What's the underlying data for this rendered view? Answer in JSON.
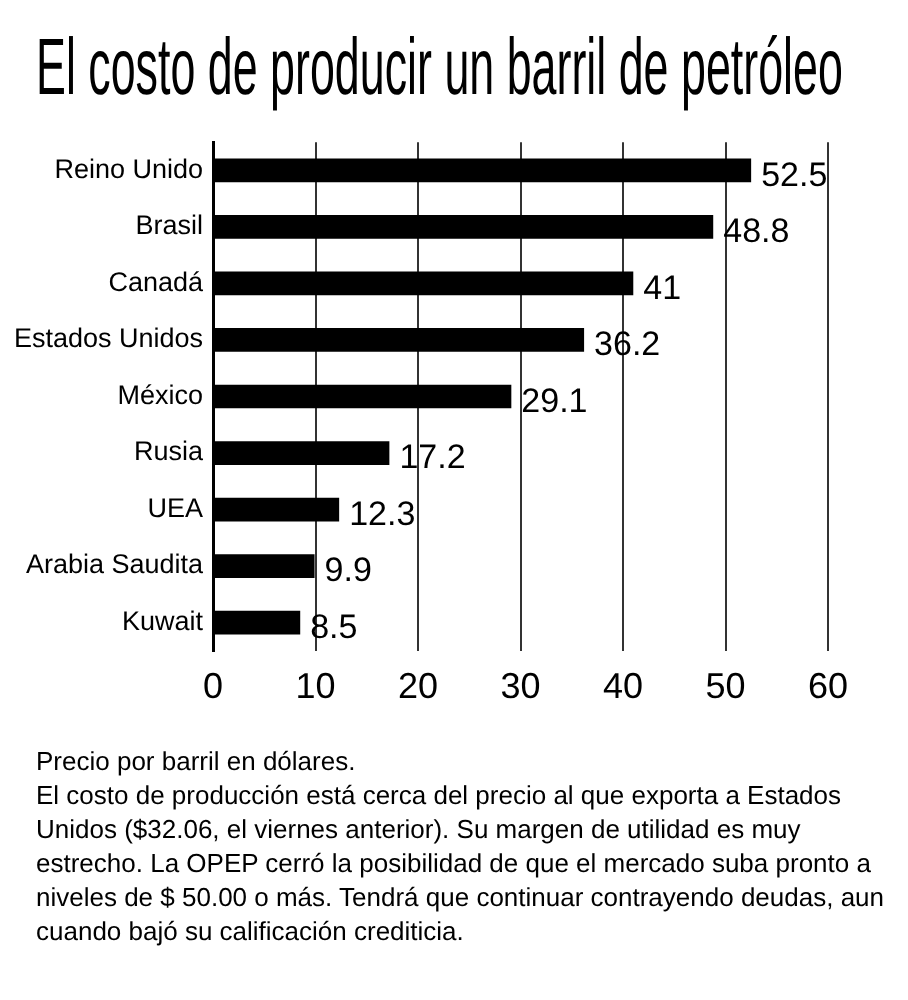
{
  "chart_data": {
    "type": "bar",
    "orientation": "horizontal",
    "title": "El costo de producir un barril de petróleo",
    "categories": [
      "Reino Unido",
      "Brasil",
      "Canadá",
      "Estados Unidos",
      "México",
      "Rusia",
      "UEA",
      "Arabia Saudita",
      "Kuwait"
    ],
    "values": [
      52.5,
      48.8,
      41,
      36.2,
      29.1,
      17.2,
      12.3,
      9.9,
      8.5
    ],
    "color": "#000000",
    "xlim": [
      0,
      60
    ],
    "xticks": [
      0,
      10,
      20,
      30,
      40,
      50,
      60
    ],
    "grid": "x",
    "data_labels": true,
    "annotations": [
      "Precio por barril en dólares.",
      "El costo de producción está cerca del precio al que exporta a Estados Unidos ($32.06, el viernes anterior). Su margen de utilidad es muy estrecho. La OPEP cerró la posibilidad de que el mercado suba pronto a niveles de $ 50.00 o más. Tendrá que continuar contrayendo deudas, aun cuando bajó su calificación crediticia."
    ]
  }
}
